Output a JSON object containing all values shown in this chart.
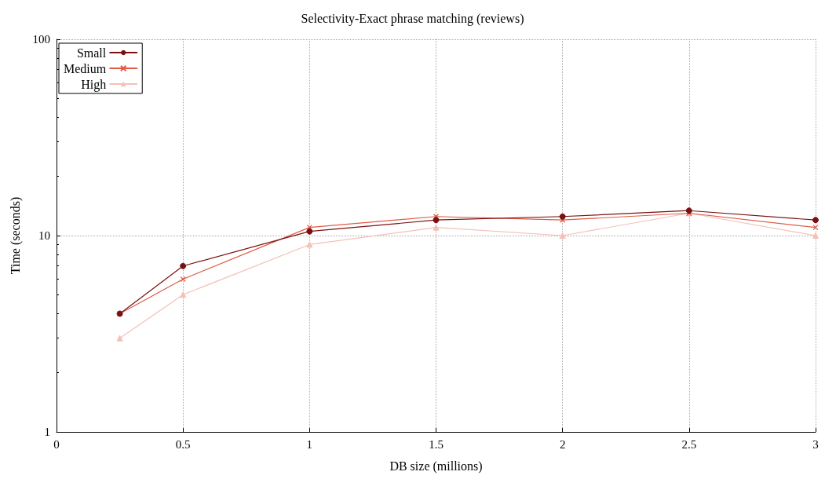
{
  "chart_data": {
    "type": "line",
    "title": "Selectivity-Exact phrase matching (reviews)",
    "xlabel": "DB size (millions)",
    "ylabel": "Time (seconds)",
    "x": [
      0.25,
      0.5,
      1,
      1.5,
      2,
      2.5,
      3
    ],
    "series": [
      {
        "name": "Small",
        "color": "#7b1010",
        "marker": "circle",
        "values": [
          4,
          7,
          10.5,
          12,
          12.5,
          13.4,
          12
        ]
      },
      {
        "name": "Medium",
        "color": "#e05a45",
        "marker": "cross",
        "values": [
          4,
          6,
          11,
          12.5,
          12,
          13,
          11
        ]
      },
      {
        "name": "High",
        "color": "#f4c0b8",
        "marker": "triangle",
        "values": [
          3,
          5,
          9,
          11,
          10,
          13,
          10
        ]
      }
    ],
    "xlim": [
      0,
      3
    ],
    "xticks": [
      0,
      0.5,
      1,
      1.5,
      2,
      2.5,
      3
    ],
    "ylim": [
      1,
      100
    ],
    "yticks": [
      1,
      10,
      100
    ],
    "log": "y",
    "grid": true,
    "legend": "top left",
    "line_style": "solid"
  }
}
